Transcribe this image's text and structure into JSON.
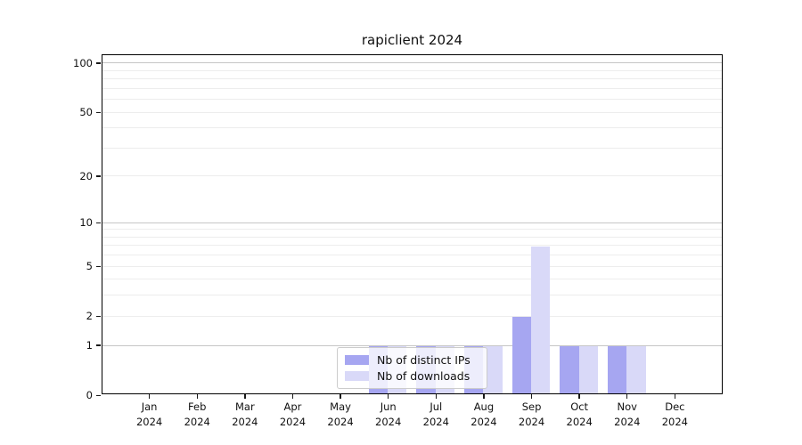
{
  "chart_data": {
    "type": "bar",
    "title": "rapiclient 2024",
    "categories": [
      "Jan 2024",
      "Feb 2024",
      "Mar 2024",
      "Apr 2024",
      "May 2024",
      "Jun 2024",
      "Jul 2024",
      "Aug 2024",
      "Sep 2024",
      "Oct 2024",
      "Nov 2024",
      "Dec 2024"
    ],
    "series": [
      {
        "name": "Nb of distinct IPs",
        "color": "#a6a6f1",
        "values": [
          0,
          0,
          0,
          0,
          0,
          1,
          1,
          1,
          2,
          1,
          1,
          0
        ]
      },
      {
        "name": "Nb of downloads",
        "color": "#d9d9f8",
        "values": [
          0,
          0,
          0,
          0,
          0,
          1,
          1,
          1,
          7,
          1,
          1,
          0
        ]
      }
    ],
    "xlabel": "",
    "ylabel": "",
    "y_scale": "log1p",
    "y_ticks": [
      0,
      1,
      2,
      5,
      10,
      20,
      50,
      100
    ],
    "y_minor_gridlines": [
      2,
      3,
      4,
      5,
      6,
      7,
      8,
      9,
      20,
      30,
      40,
      50,
      60,
      70,
      80,
      90
    ],
    "y_major_gridlines": [
      1,
      10,
      100
    ],
    "ylim": [
      0,
      113
    ],
    "grid": "both",
    "legend_position": "lower center",
    "background_color": "#ffffff",
    "spine_color": "#000000"
  }
}
